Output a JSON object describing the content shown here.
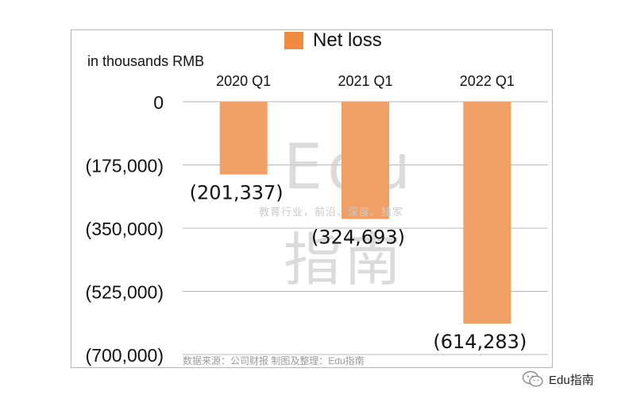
{
  "chart_data": {
    "type": "bar",
    "legend": "Net loss",
    "unit_label": "in thousands RMB",
    "categories": [
      "2020 Q1",
      "2021 Q1",
      "2022 Q1"
    ],
    "series": [
      {
        "name": "Net loss",
        "values": [
          -201337,
          -324693,
          -614283
        ]
      }
    ],
    "data_labels": [
      "(201,337)",
      "(324,693)",
      "(614,283)"
    ],
    "y_ticks": [
      0,
      -175000,
      -350000,
      -525000,
      -700000
    ],
    "y_tick_labels": [
      "0",
      "(175,000)",
      "(350,000)",
      "(525,000)",
      "(700,000)"
    ],
    "ylim": [
      -700000,
      0
    ],
    "grid": true,
    "legend_position": "top",
    "category_axis_position": "top",
    "bar_color": "#f0a066"
  },
  "watermark": {
    "big_latin": "Edu",
    "big_cjk": "指南",
    "slogan": "教育行业，前沿、深度、独家"
  },
  "source_note": "数据来源：公司财报  制图及整理：Edu指南",
  "brand": {
    "label": "Edu指南",
    "icon": "wechat-icon"
  }
}
